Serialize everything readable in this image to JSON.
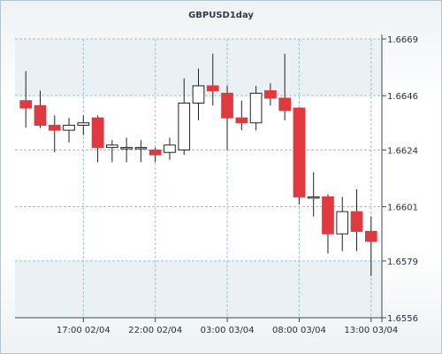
{
  "chart_data": {
    "type": "candlestick",
    "title": "GBPUSD1day",
    "xlabel": "",
    "ylabel": "",
    "ylim": [
      1.6556,
      1.6669
    ],
    "y_ticks": [
      "1.6669",
      "1.6646",
      "1.6624",
      "1.6601",
      "1.6579",
      "1.6556"
    ],
    "x_ticks": [
      "17:00 02/04",
      "22:00 02/04",
      "03:00 03/04",
      "08:00 03/04",
      "13:00 03/04"
    ],
    "grid": true,
    "colors": {
      "up": "#ffffff",
      "down": "#e0393f",
      "wick": "#222222",
      "grid": "#93c9cf",
      "band": "#eaf0f3"
    },
    "candles": [
      {
        "o": 1.6644,
        "h": 1.6656,
        "l": 1.6633,
        "c": 1.6641
      },
      {
        "o": 1.6642,
        "h": 1.6648,
        "l": 1.6633,
        "c": 1.6634
      },
      {
        "o": 1.6634,
        "h": 1.6638,
        "l": 1.6623,
        "c": 1.6632
      },
      {
        "o": 1.6632,
        "h": 1.6637,
        "l": 1.6627,
        "c": 1.6634
      },
      {
        "o": 1.6634,
        "h": 1.6638,
        "l": 1.663,
        "c": 1.6635
      },
      {
        "o": 1.6637,
        "h": 1.6638,
        "l": 1.6619,
        "c": 1.6625
      },
      {
        "o": 1.6625,
        "h": 1.6628,
        "l": 1.6619,
        "c": 1.6626
      },
      {
        "o": 1.6625,
        "h": 1.6629,
        "l": 1.6619,
        "c": 1.6625
      },
      {
        "o": 1.6625,
        "h": 1.6628,
        "l": 1.6619,
        "c": 1.6625
      },
      {
        "o": 1.6624,
        "h": 1.6625,
        "l": 1.6619,
        "c": 1.6622
      },
      {
        "o": 1.6623,
        "h": 1.6629,
        "l": 1.662,
        "c": 1.6626
      },
      {
        "o": 1.6624,
        "h": 1.6653,
        "l": 1.6622,
        "c": 1.6643
      },
      {
        "o": 1.6643,
        "h": 1.6657,
        "l": 1.6636,
        "c": 1.665
      },
      {
        "o": 1.665,
        "h": 1.6663,
        "l": 1.6642,
        "c": 1.6648
      },
      {
        "o": 1.6647,
        "h": 1.665,
        "l": 1.6624,
        "c": 1.6637
      },
      {
        "o": 1.6637,
        "h": 1.6644,
        "l": 1.6632,
        "c": 1.6635
      },
      {
        "o": 1.6635,
        "h": 1.665,
        "l": 1.6632,
        "c": 1.6647
      },
      {
        "o": 1.6648,
        "h": 1.6651,
        "l": 1.6642,
        "c": 1.6645
      },
      {
        "o": 1.6645,
        "h": 1.6663,
        "l": 1.6636,
        "c": 1.664
      },
      {
        "o": 1.6641,
        "h": 1.6641,
        "l": 1.6602,
        "c": 1.6605
      },
      {
        "o": 1.6605,
        "h": 1.6615,
        "l": 1.6597,
        "c": 1.6605
      },
      {
        "o": 1.6605,
        "h": 1.6606,
        "l": 1.6582,
        "c": 1.659
      },
      {
        "o": 1.659,
        "h": 1.6605,
        "l": 1.6583,
        "c": 1.6599
      },
      {
        "o": 1.6599,
        "h": 1.6608,
        "l": 1.6583,
        "c": 1.6591
      },
      {
        "o": 1.6591,
        "h": 1.6597,
        "l": 1.6573,
        "c": 1.6587
      }
    ]
  }
}
